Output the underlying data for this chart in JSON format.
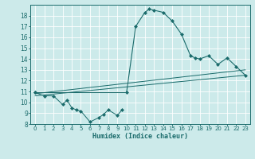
{
  "background_color": "#cceaea",
  "grid_color": "#ffffff",
  "line_color": "#1a6b6b",
  "xlabel": "Humidex (Indice chaleur)",
  "xlim": [
    -0.5,
    23.5
  ],
  "ylim": [
    8,
    19
  ],
  "yticks": [
    8,
    9,
    10,
    11,
    12,
    13,
    14,
    15,
    16,
    17,
    18
  ],
  "xticks": [
    0,
    1,
    2,
    3,
    4,
    5,
    6,
    7,
    8,
    9,
    10,
    11,
    12,
    13,
    14,
    15,
    16,
    17,
    18,
    19,
    20,
    21,
    22,
    23
  ],
  "series1_x": [
    0,
    1,
    2,
    3,
    3.5,
    4,
    4.5,
    5,
    6,
    7,
    7.5,
    8,
    9,
    9.5
  ],
  "series1_y": [
    10.9,
    10.6,
    10.6,
    9.8,
    10.2,
    9.5,
    9.3,
    9.2,
    8.2,
    8.6,
    8.9,
    9.3,
    8.8,
    9.3
  ],
  "series2_x": [
    0,
    10,
    11,
    12,
    12.5,
    13,
    14,
    15,
    16,
    17,
    17.5,
    18,
    19,
    20,
    21,
    22,
    23
  ],
  "series2_y": [
    10.9,
    10.9,
    17.0,
    18.3,
    18.6,
    18.5,
    18.3,
    17.5,
    16.3,
    14.3,
    14.1,
    14.0,
    14.3,
    13.5,
    14.1,
    13.3,
    12.5
  ],
  "trend1_x": [
    0,
    23
  ],
  "trend1_y": [
    10.8,
    13.0
  ],
  "trend2_x": [
    0,
    23
  ],
  "trend2_y": [
    10.6,
    12.5
  ],
  "xlabel_fontsize": 6,
  "tick_fontsize": 5
}
